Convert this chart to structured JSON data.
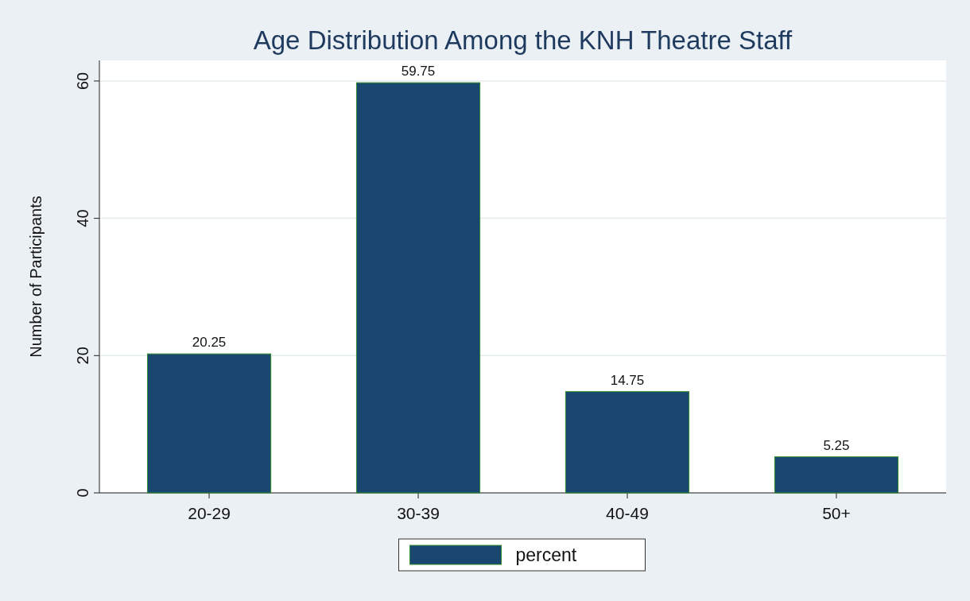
{
  "chart_data": {
    "type": "bar",
    "title": "Age Distribution Among the KNH Theatre Staff",
    "ylabel": "Number of Participants",
    "categories": [
      "20-29",
      "30-39",
      "40-49",
      "50+"
    ],
    "series": [
      {
        "name": "percent",
        "color": "#1a476f",
        "values": [
          20.25,
          59.75,
          14.75,
          5.25
        ]
      }
    ],
    "ylim": [
      0,
      63
    ],
    "yticks": [
      0,
      20,
      40,
      60
    ],
    "grid": "y",
    "legend": "bottom",
    "data_labels": true
  }
}
